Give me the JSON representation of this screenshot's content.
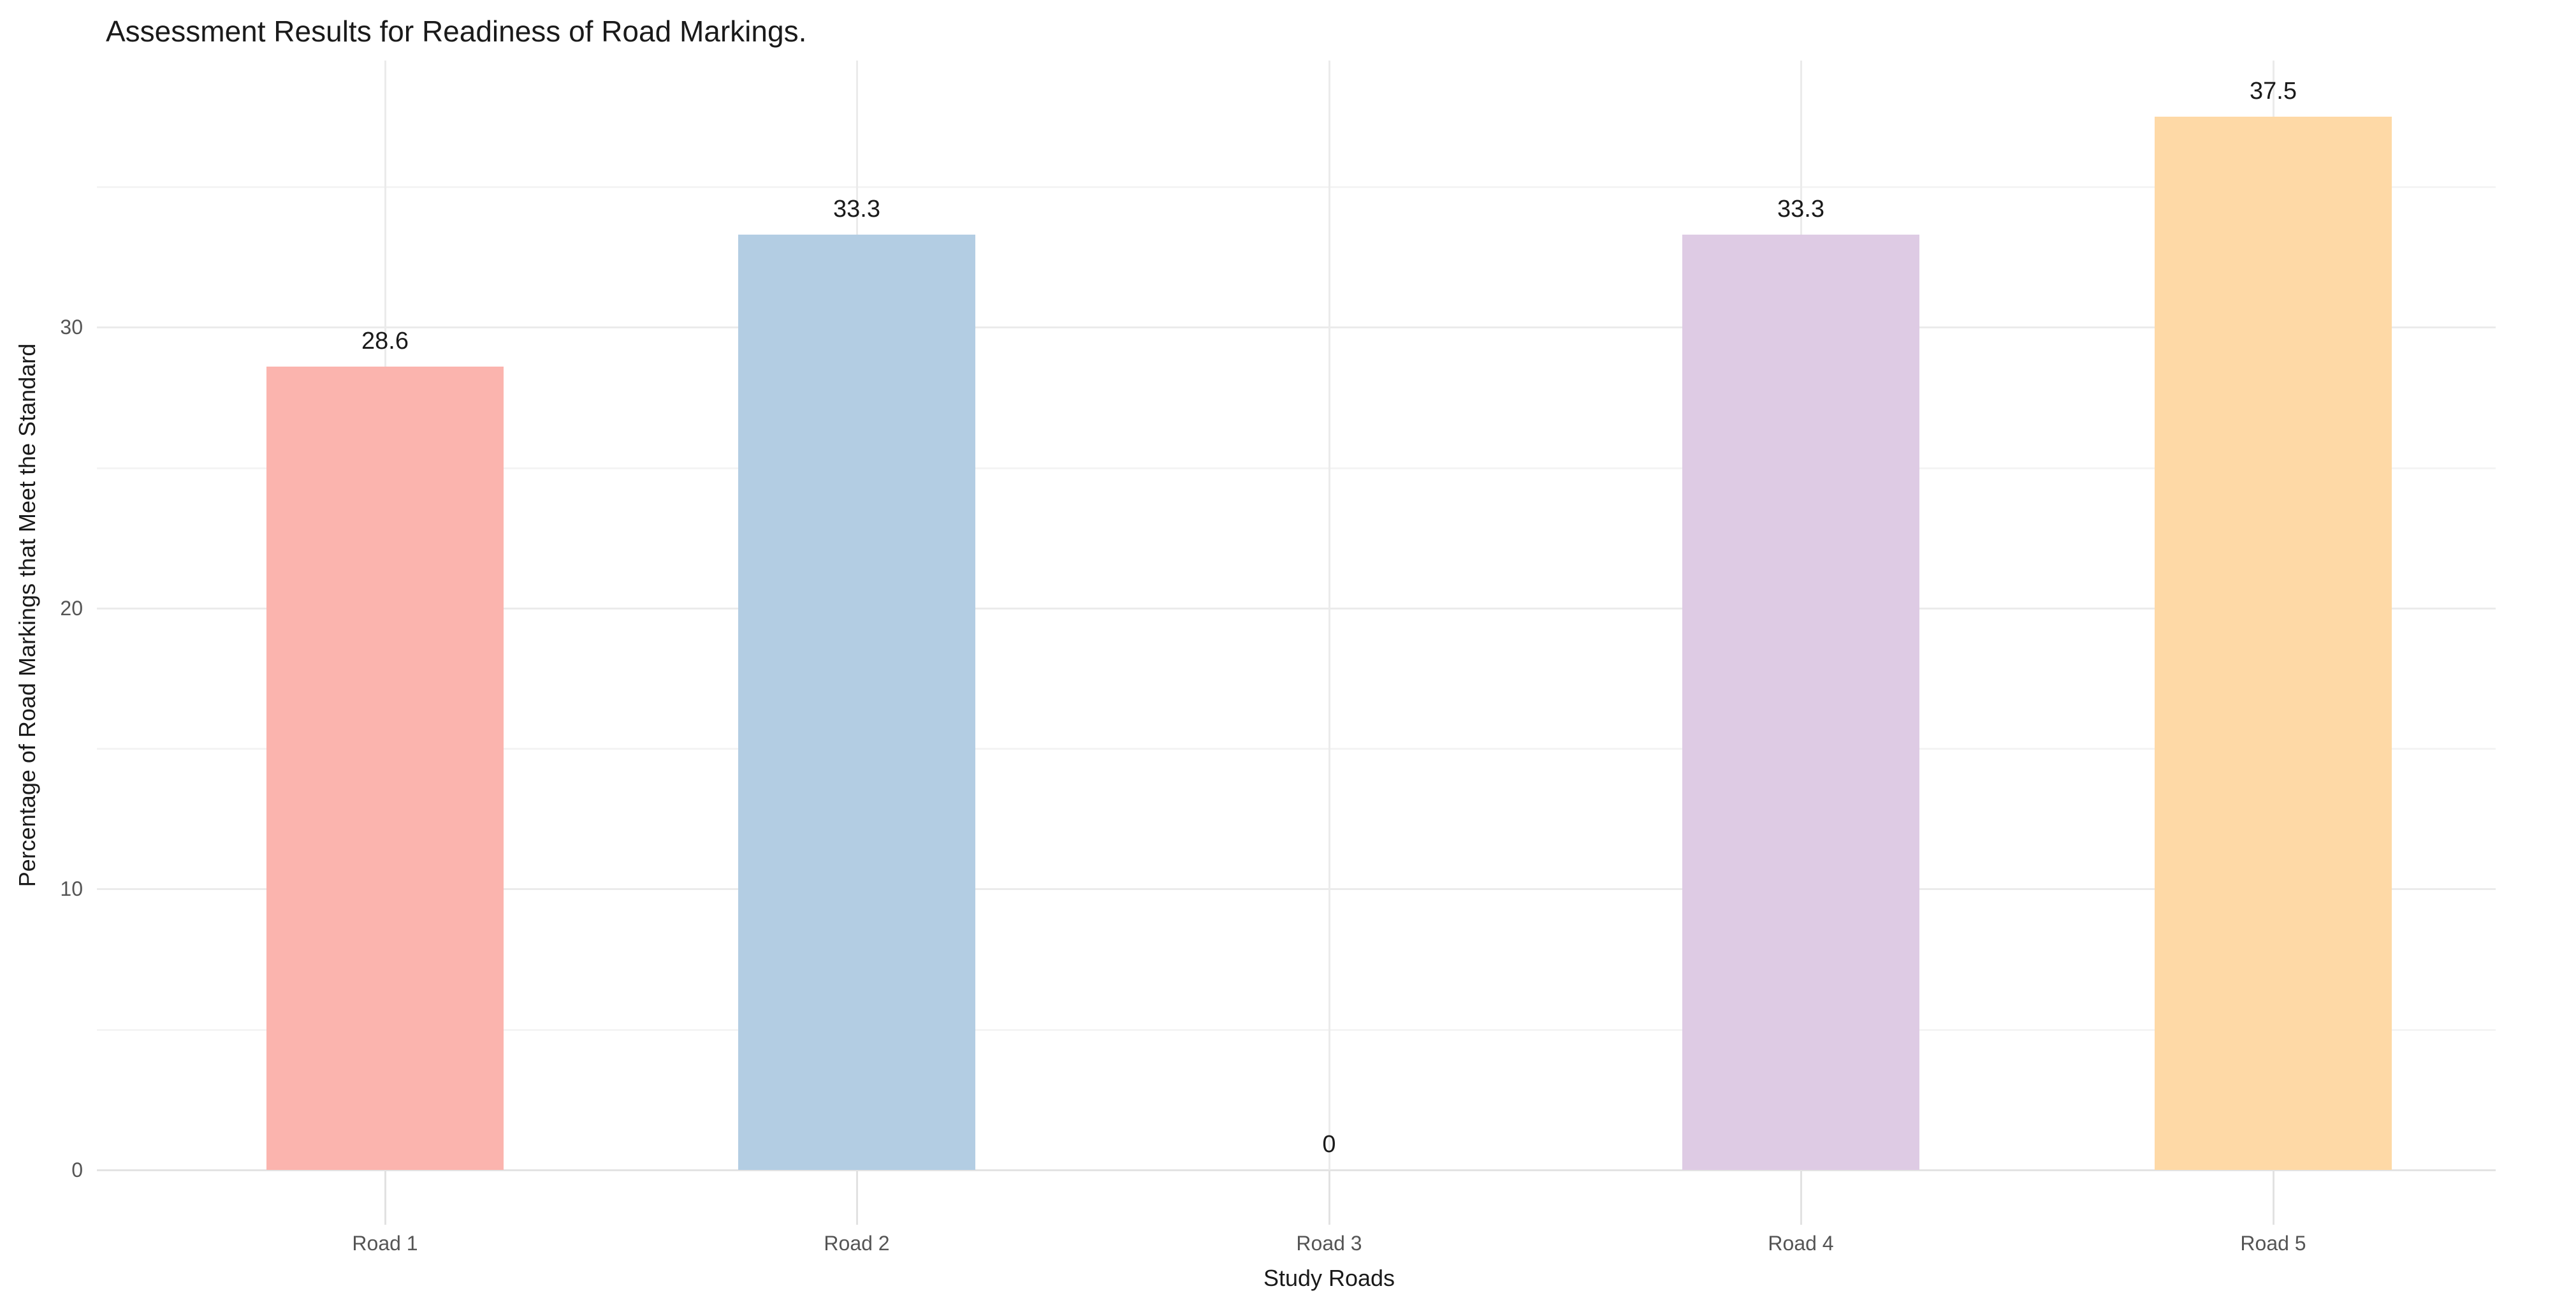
{
  "chart_data": {
    "type": "bar",
    "title": "Assessment Results for Readiness of Road Markings.",
    "xlabel": "Study Roads",
    "ylabel": "Percentage of Road Markings that Meet the Standard",
    "categories": [
      "Road 1",
      "Road 2",
      "Road 3",
      "Road 4",
      "Road 5"
    ],
    "values": [
      28.6,
      33.3,
      0,
      33.3,
      37.5
    ],
    "value_labels": [
      "28.6",
      "33.3",
      "0",
      "33.3",
      "37.5"
    ],
    "bar_colors": [
      "#FBB4AE",
      "#B3CDE3",
      null,
      "#DECBE4",
      "#FED9A6"
    ],
    "ylim": [
      0,
      39.5
    ],
    "y_major_ticks": [
      0,
      10,
      20,
      30
    ],
    "y_minor_gridlines": [
      5,
      15,
      25,
      35
    ],
    "grid": "horizontal major+minor gridlines, vertical gridline at each category center",
    "legend": "none",
    "colors": {
      "background": "#FFFFFF",
      "grid_major": "#EBEBEB",
      "grid_minor": "#F4F4F4",
      "axis_line": "#E3E3E3",
      "tick_mark": "#E2E2E2",
      "tick_label": "#555555",
      "title_text": "#1A1A1A",
      "axis_title_text": "#1A1A1A",
      "value_label_text": "#1A1A1A"
    }
  }
}
